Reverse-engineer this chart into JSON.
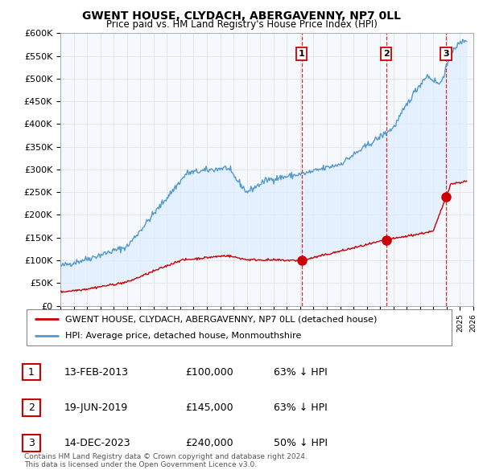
{
  "title": "GWENT HOUSE, CLYDACH, ABERGAVENNY, NP7 0LL",
  "subtitle": "Price paid vs. HM Land Registry's House Price Index (HPI)",
  "ylabel_ticks": [
    "£0",
    "£50K",
    "£100K",
    "£150K",
    "£200K",
    "£250K",
    "£300K",
    "£350K",
    "£400K",
    "£450K",
    "£500K",
    "£550K",
    "£600K"
  ],
  "ytick_values": [
    0,
    50000,
    100000,
    150000,
    200000,
    250000,
    300000,
    350000,
    400000,
    450000,
    500000,
    550000,
    600000
  ],
  "hpi_color": "#5599cc",
  "price_color": "#cc0000",
  "fill_color": "#ddeeff",
  "background_color": "#ffffff",
  "grid_color": "#cccccc",
  "sale_marker_color": "#cc0000",
  "vline_dates": [
    2013.1,
    2019.46,
    2023.95
  ],
  "sale_prices": [
    100000,
    145000,
    240000
  ],
  "label_texts": [
    "1",
    "2",
    "3"
  ],
  "legend_entries": [
    "GWENT HOUSE, CLYDACH, ABERGAVENNY, NP7 0LL (detached house)",
    "HPI: Average price, detached house, Monmouthshire"
  ],
  "table_rows": [
    {
      "num": "1",
      "date": "13-FEB-2013",
      "price": "£100,000",
      "pct": "63% ↓ HPI"
    },
    {
      "num": "2",
      "date": "19-JUN-2019",
      "price": "£145,000",
      "pct": "63% ↓ HPI"
    },
    {
      "num": "3",
      "date": "14-DEC-2023",
      "price": "£240,000",
      "pct": "50% ↓ HPI"
    }
  ],
  "footnote": "Contains HM Land Registry data © Crown copyright and database right 2024.\nThis data is licensed under the Open Government Licence v3.0.",
  "xmin": 1995,
  "xmax": 2026,
  "ymin": 0,
  "ymax": 600000,
  "vline_color": "#cc0000"
}
